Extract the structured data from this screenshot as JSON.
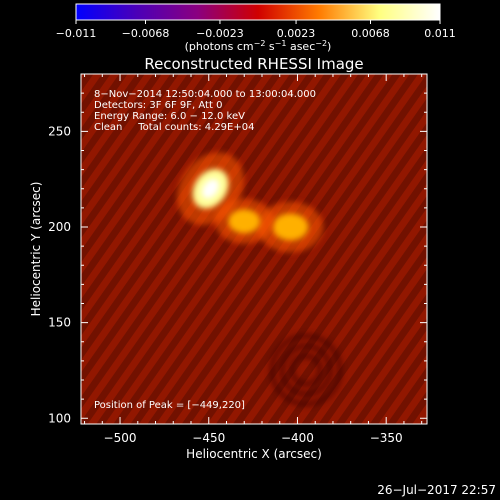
{
  "colorbar": {
    "ticks": [
      "−0.011",
      "−0.0068",
      "−0.0023",
      "0.0023",
      "0.0068",
      "0.011"
    ],
    "unit_parts": [
      "(photons cm",
      "−2",
      " s",
      "−1",
      " asec",
      "−2",
      ")"
    ],
    "colors": [
      "#0000ff",
      "#4b00b8",
      "#8a0080",
      "#d00000",
      "#ff7a00",
      "#ffff80",
      "#ffffff"
    ]
  },
  "plot": {
    "title": "Reconstructed RHESSI Image",
    "xlabel": "Heliocentric X (arcsec)",
    "ylabel": "Heliocentric Y (arcsec)",
    "background_color": "#8a1500",
    "annotations": [
      "8−Nov−2014 12:50:04.000 to 13:00:04.000",
      "Detectors: 3F 6F 9F, Att 0",
      "Energy Range: 6.0 − 12.0 keV",
      "Clean     Total counts: 4.29E+04"
    ],
    "peak_text": "Position of Peak = [−449,220]"
  },
  "footer": {
    "date": "26−Jul−2017 22:57"
  },
  "chart_data": {
    "type": "heatmap",
    "title": "Reconstructed RHESSI Image",
    "xlabel": "Heliocentric X (arcsec)",
    "ylabel": "Heliocentric Y (arcsec)",
    "xlim": [
      -522,
      -327
    ],
    "ylim": [
      97,
      280
    ],
    "x_ticks": [
      -500,
      -450,
      -400,
      -350
    ],
    "x_tick_labels": [
      "−500",
      "−450",
      "−400",
      "−350"
    ],
    "y_ticks": [
      100,
      150,
      200,
      250
    ],
    "y_tick_labels": [
      "100",
      "150",
      "200",
      "250"
    ],
    "colorbar_range": [
      -0.011,
      0.011
    ],
    "colorbar_ticks": [
      -0.011,
      -0.0068,
      -0.0023,
      0.0023,
      0.0068,
      0.011
    ],
    "colorbar_unit": "photons cm^-2 s^-1 asec^-2",
    "sources": [
      {
        "x": -449,
        "y": 220,
        "intensity": 0.011
      },
      {
        "x": -404,
        "y": 200,
        "intensity": 0.0075
      },
      {
        "x": -430,
        "y": 203,
        "intensity": 0.0055
      }
    ],
    "peak": [
      -449,
      220
    ]
  }
}
